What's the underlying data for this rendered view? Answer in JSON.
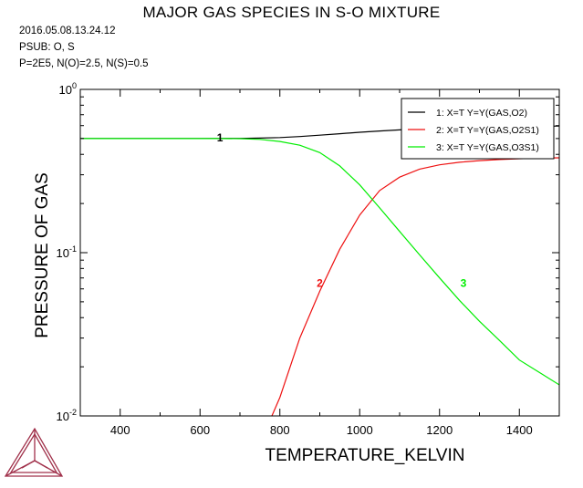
{
  "chart_data": {
    "type": "line",
    "title": "MAJOR GAS SPECIES IN S-O MIXTURE",
    "info": [
      "2016.05.08.13.24.12",
      "PSUB: O, S",
      "P=2E5, N(O)=2.5, N(S)=0.5"
    ],
    "xlabel": "TEMPERATURE_KELVIN",
    "ylabel": "PRESSURE OF GAS",
    "xlim": [
      300,
      1500
    ],
    "ylim": [
      0.01,
      1
    ],
    "yscale": "log",
    "x_ticks": [
      400,
      600,
      800,
      1000,
      1200,
      1400
    ],
    "y_ticks": [
      {
        "base": "10",
        "exp": "0",
        "value": 1
      },
      {
        "base": "10",
        "exp": "-1",
        "value": 0.1
      },
      {
        "base": "10",
        "exp": "-2",
        "value": 0.01
      }
    ],
    "legend_position": "top-right",
    "grid": false,
    "series": [
      {
        "name": "1:  X=T  Y=Y(GAS,O2)",
        "label": "1",
        "label_at": [
          650,
          0.505
        ],
        "color": "#000000",
        "x": [
          300,
          500,
          600,
          700,
          750,
          800,
          850,
          900,
          950,
          1000,
          1050,
          1100,
          1150,
          1200,
          1250,
          1300,
          1350,
          1400,
          1450,
          1500
        ],
        "y": [
          0.5,
          0.5,
          0.5,
          0.501,
          0.503,
          0.507,
          0.514,
          0.524,
          0.535,
          0.546,
          0.556,
          0.565,
          0.572,
          0.578,
          0.582,
          0.586,
          0.589,
          0.592,
          0.594,
          0.596
        ]
      },
      {
        "name": "2:  X=T  Y=Y(GAS,O2S1)",
        "label": "2",
        "label_at": [
          900,
          0.065
        ],
        "color": "#ee1111",
        "x": [
          780,
          800,
          850,
          900,
          950,
          1000,
          1050,
          1100,
          1150,
          1200,
          1250,
          1300,
          1350,
          1400,
          1450,
          1500
        ],
        "y": [
          0.01,
          0.013,
          0.03,
          0.058,
          0.105,
          0.17,
          0.24,
          0.29,
          0.325,
          0.345,
          0.358,
          0.366,
          0.372,
          0.376,
          0.379,
          0.381
        ]
      },
      {
        "name": "3:  X=T  Y=Y(GAS,O3S1)",
        "label": "3",
        "label_at": [
          1260,
          0.065
        ],
        "color": "#00ee00",
        "x": [
          300,
          600,
          650,
          700,
          750,
          800,
          850,
          900,
          950,
          1000,
          1050,
          1100,
          1150,
          1200,
          1250,
          1300,
          1350,
          1400,
          1450,
          1500
        ],
        "y": [
          0.5,
          0.5,
          0.5,
          0.499,
          0.494,
          0.48,
          0.455,
          0.41,
          0.34,
          0.26,
          0.188,
          0.135,
          0.097,
          0.07,
          0.051,
          0.038,
          0.029,
          0.022,
          0.0185,
          0.0155
        ]
      }
    ]
  }
}
